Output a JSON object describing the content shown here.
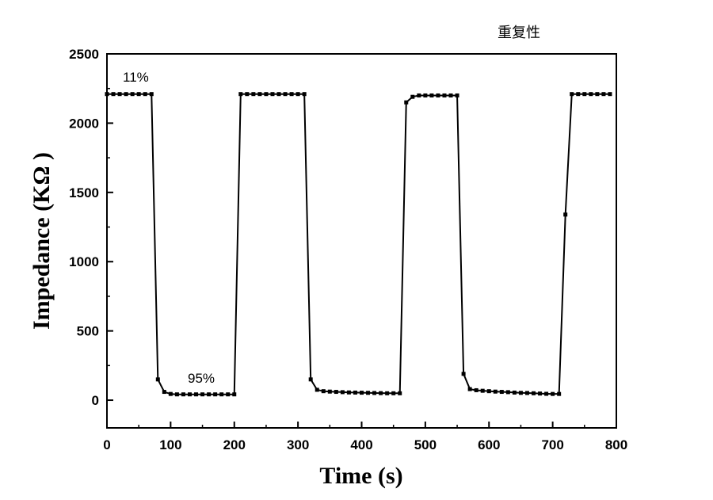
{
  "chart_data": {
    "type": "line",
    "title": "重复性",
    "xlabel": "Time (s)",
    "ylabel": "Impedance (KΩ )",
    "xlim": [
      0,
      800
    ],
    "ylim": [
      -200,
      2500
    ],
    "xticks": [
      0,
      100,
      200,
      300,
      400,
      500,
      600,
      700,
      800
    ],
    "yticks": [
      0,
      500,
      1000,
      1500,
      2000,
      2500
    ],
    "grid": false,
    "annotations": [
      "11%",
      "95%"
    ],
    "series": [
      {
        "color": "#000000",
        "marker": "square",
        "x": [
          0,
          10,
          20,
          30,
          40,
          50,
          60,
          70,
          80,
          90,
          100,
          110,
          120,
          130,
          140,
          150,
          160,
          170,
          180,
          190,
          200,
          210,
          220,
          230,
          240,
          250,
          260,
          270,
          280,
          290,
          300,
          310,
          320,
          330,
          340,
          350,
          360,
          370,
          380,
          390,
          400,
          410,
          420,
          430,
          440,
          450,
          460,
          470,
          480,
          490,
          500,
          510,
          520,
          530,
          540,
          550,
          560,
          570,
          580,
          590,
          600,
          610,
          620,
          630,
          640,
          650,
          660,
          670,
          680,
          690,
          700,
          710,
          720,
          730,
          740,
          750,
          760,
          770,
          780,
          790
        ],
        "y": [
          2210,
          2210,
          2210,
          2210,
          2210,
          2210,
          2210,
          2210,
          150,
          60,
          45,
          42,
          42,
          42,
          42,
          42,
          42,
          42,
          42,
          42,
          42,
          2210,
          2210,
          2210,
          2210,
          2210,
          2210,
          2210,
          2210,
          2210,
          2210,
          2210,
          150,
          75,
          65,
          62,
          60,
          58,
          56,
          55,
          54,
          53,
          52,
          51,
          50,
          50,
          50,
          2150,
          2190,
          2200,
          2200,
          2200,
          2200,
          2200,
          2200,
          2200,
          190,
          80,
          72,
          68,
          65,
          62,
          60,
          58,
          55,
          53,
          52,
          50,
          48,
          46,
          45,
          45,
          1340,
          2210,
          2210,
          2210,
          2210,
          2210,
          2210,
          2210
        ]
      }
    ]
  }
}
